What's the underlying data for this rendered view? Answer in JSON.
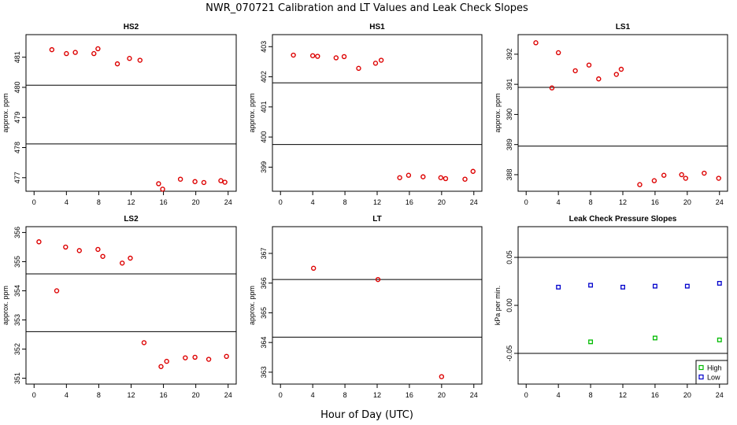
{
  "figure": {
    "title": "NWR_070721  Calibration and LT Values and Leak Check Slopes",
    "xlabel": "Hour of Day (UTC)"
  },
  "chart_data": [
    {
      "type": "scatter",
      "title": "HS2",
      "xlabel": "",
      "ylabel": "approx. ppm",
      "xlim": [
        -1,
        25
      ],
      "ylim": [
        476.55,
        481.75
      ],
      "x_ticks": [
        "0",
        "4",
        "8",
        "12",
        "16",
        "20",
        "24"
      ],
      "y_ticks": [
        "477",
        "478",
        "479",
        "480",
        "481"
      ],
      "hlines": [
        480.07,
        478.12
      ],
      "grid": false,
      "series": [
        {
          "color": "#dd0000",
          "marker": "circle",
          "x": [
            2.2,
            4.0,
            5.1,
            7.4,
            7.9,
            10.3,
            11.8,
            13.1,
            15.4,
            15.9,
            18.1,
            19.9,
            21.0,
            23.1,
            23.6
          ],
          "y": [
            481.25,
            481.12,
            481.16,
            481.12,
            481.28,
            480.78,
            480.96,
            480.9,
            476.8,
            476.62,
            476.95,
            476.87,
            476.84,
            476.9,
            476.85
          ]
        }
      ]
    },
    {
      "type": "scatter",
      "title": "HS1",
      "xlabel": "",
      "ylabel": "approx. ppm",
      "xlim": [
        -1,
        25
      ],
      "ylim": [
        398.2,
        403.4
      ],
      "x_ticks": [
        "0",
        "4",
        "8",
        "12",
        "16",
        "20",
        "24"
      ],
      "y_ticks": [
        "399",
        "400",
        "401",
        "402",
        "403"
      ],
      "hlines": [
        401.8,
        399.75
      ],
      "grid": false,
      "series": [
        {
          "color": "#dd0000",
          "marker": "circle",
          "x": [
            1.6,
            4.0,
            4.6,
            6.9,
            7.9,
            9.7,
            11.8,
            12.5,
            14.8,
            15.9,
            17.7,
            19.9,
            20.5,
            22.9,
            23.9
          ],
          "y": [
            402.72,
            402.7,
            402.68,
            402.63,
            402.67,
            402.28,
            402.45,
            402.55,
            398.65,
            398.73,
            398.68,
            398.65,
            398.62,
            398.6,
            398.86
          ]
        }
      ]
    },
    {
      "type": "scatter",
      "title": "LS1",
      "xlabel": "",
      "ylabel": "approx. ppm",
      "xlim": [
        -1,
        25
      ],
      "ylim": [
        387.45,
        392.65
      ],
      "x_ticks": [
        "0",
        "4",
        "8",
        "12",
        "16",
        "20",
        "24"
      ],
      "y_ticks": [
        "388",
        "389",
        "390",
        "391",
        "392"
      ],
      "hlines": [
        390.9,
        388.95
      ],
      "grid": false,
      "series": [
        {
          "color": "#dd0000",
          "marker": "circle",
          "x": [
            1.2,
            3.2,
            4.0,
            6.1,
            7.8,
            9.0,
            11.2,
            11.8,
            14.1,
            15.9,
            17.1,
            19.3,
            19.8,
            22.1,
            23.9
          ],
          "y": [
            392.38,
            390.88,
            392.05,
            391.45,
            391.64,
            391.18,
            391.33,
            391.5,
            387.67,
            387.8,
            387.98,
            388.0,
            387.88,
            388.05,
            387.88
          ]
        }
      ]
    },
    {
      "type": "scatter",
      "title": "LS2",
      "xlabel": "",
      "ylabel": "approx. ppm",
      "xlim": [
        -1,
        25
      ],
      "ylim": [
        350.8,
        356.2
      ],
      "x_ticks": [
        "0",
        "4",
        "8",
        "12",
        "16",
        "20",
        "24"
      ],
      "y_ticks": [
        "351",
        "352",
        "353",
        "354",
        "355",
        "356"
      ],
      "hlines": [
        354.58,
        352.6
      ],
      "grid": false,
      "series": [
        {
          "color": "#dd0000",
          "marker": "circle",
          "x": [
            0.6,
            2.8,
            3.9,
            5.6,
            7.9,
            8.5,
            10.9,
            11.9,
            13.6,
            15.7,
            16.4,
            18.7,
            19.9,
            21.6,
            23.8
          ],
          "y": [
            355.68,
            354.0,
            355.5,
            355.38,
            355.42,
            355.18,
            354.95,
            355.12,
            352.22,
            351.4,
            351.58,
            351.7,
            351.72,
            351.65,
            351.75
          ]
        }
      ]
    },
    {
      "type": "scatter",
      "title": "LT",
      "xlabel": "",
      "ylabel": "approx. ppm",
      "xlim": [
        -1,
        25
      ],
      "ylim": [
        362.6,
        367.9
      ],
      "x_ticks": [
        "0",
        "4",
        "8",
        "12",
        "16",
        "20",
        "24"
      ],
      "y_ticks": [
        "363",
        "364",
        "365",
        "366",
        "367"
      ],
      "hlines": [
        366.12,
        364.18
      ],
      "grid": false,
      "series": [
        {
          "color": "#dd0000",
          "marker": "circle",
          "x": [
            4.1,
            12.1,
            20.0
          ],
          "y": [
            366.5,
            366.12,
            362.85
          ]
        }
      ]
    },
    {
      "type": "scatter",
      "title": "Leak Check Pressure Slopes",
      "xlabel": "",
      "ylabel": "kPa per min.",
      "xlim": [
        -1,
        25
      ],
      "ylim": [
        -0.082,
        0.082
      ],
      "x_ticks": [
        "0",
        "4",
        "8",
        "12",
        "16",
        "20",
        "24"
      ],
      "y_ticks": [
        "-0.05",
        "0.00",
        "0.05"
      ],
      "hlines": [
        0.05,
        -0.05
      ],
      "grid": false,
      "legend": "bottom-right",
      "series": [
        {
          "name": "High",
          "color": "#00bb00",
          "marker": "square",
          "x": [
            8,
            16,
            24
          ],
          "y": [
            -0.038,
            -0.034,
            -0.036
          ]
        },
        {
          "name": "Low",
          "color": "#0000cc",
          "marker": "square",
          "x": [
            4,
            8,
            12,
            16,
            20,
            24
          ],
          "y": [
            0.019,
            0.021,
            0.019,
            0.02,
            0.02,
            0.023
          ]
        }
      ]
    }
  ]
}
